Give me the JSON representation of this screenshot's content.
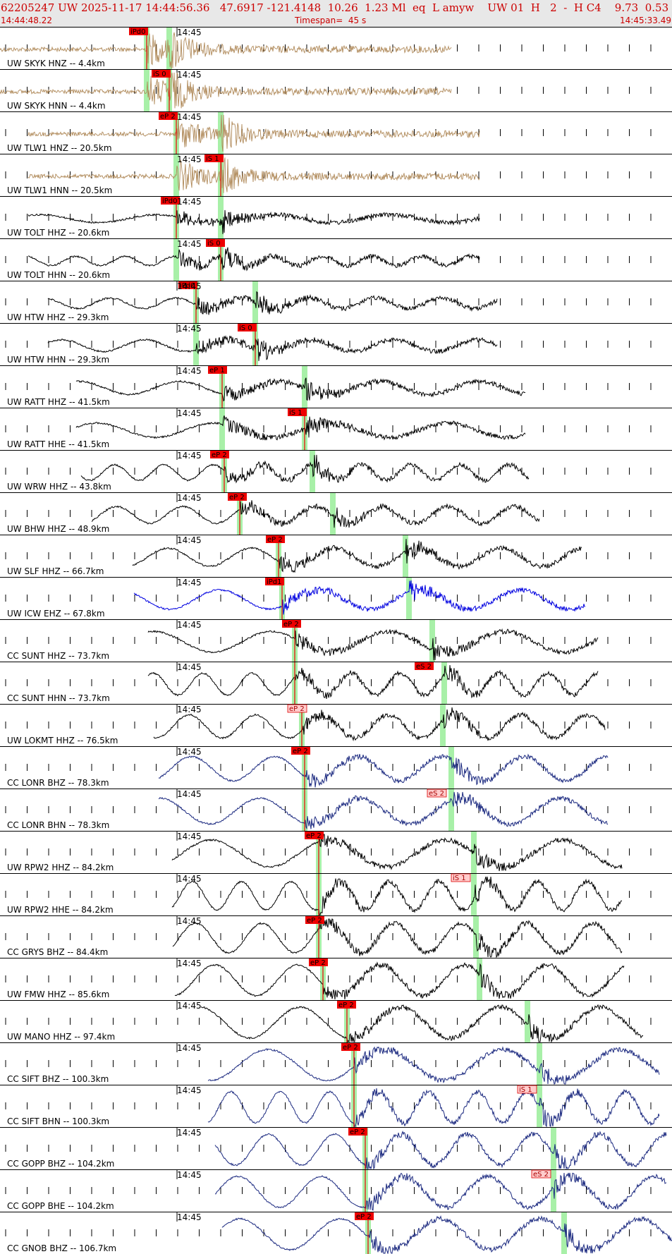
{
  "header": {
    "info": "62205247 UW 2025-11-17 14:44:56.36   47.6917 -121.4148  10.26  1.23 Ml  eq  L amyw    UW 01  H   2  -  H C4    9.73  0.53",
    "start_time": "14:44:48.22",
    "timespan": "Timespan=  45 s",
    "end_time": "14:45:33.49"
  },
  "time_tick_label": "14:45",
  "colors": {
    "header_text": "#cc0000",
    "trace_default": "#000000",
    "trace_brown": "#b08a5a",
    "trace_blue": "#0000e0",
    "trace_navy": "#1c2a80",
    "pick_fill": "#ee0000",
    "pick_fill_emergent": "#ffcccc",
    "window": "#a8f0a8",
    "pick_line": "#ee0000"
  },
  "channels": [
    {
      "label": "UW SKYK HNZ -- 4.4km",
      "color": "trace_brown",
      "pick": "iPd0",
      "pick_emergent": false
    },
    {
      "label": "UW SKYK HNN -- 4.4km",
      "color": "trace_brown",
      "pick": "iS 0",
      "pick_emergent": false
    },
    {
      "label": "UW TLW1 HNZ -- 20.5km",
      "color": "trace_brown",
      "pick": "eP 2",
      "pick_emergent": false
    },
    {
      "label": "UW TLW1 HNN -- 20.5km",
      "color": "trace_brown",
      "pick": "iS 1",
      "pick_emergent": false
    },
    {
      "label": "UW TOLT HHZ -- 20.6km",
      "color": "trace_default",
      "pick": "iPd0",
      "pick_emergent": false
    },
    {
      "label": "UW TOLT HHN -- 20.6km",
      "color": "trace_default",
      "pick": "iS 0",
      "pick_emergent": false
    },
    {
      "label": "UW HTW HHZ -- 29.3km",
      "color": "trace_default",
      "pick": "iPd0",
      "pick_emergent": false
    },
    {
      "label": "UW HTW HHN -- 29.3km",
      "color": "trace_default",
      "pick": "iS 0",
      "pick_emergent": false
    },
    {
      "label": "UW RATT HHZ -- 41.5km",
      "color": "trace_default",
      "pick": "eP 1",
      "pick_emergent": false
    },
    {
      "label": "UW RATT HHE -- 41.5km",
      "color": "trace_default",
      "pick": "iS 1",
      "pick_emergent": false
    },
    {
      "label": "UW WRW HHZ -- 43.8km",
      "color": "trace_default",
      "pick": "eP 2",
      "pick_emergent": false
    },
    {
      "label": "UW BHW HHZ -- 48.9km",
      "color": "trace_default",
      "pick": "eP 2",
      "pick_emergent": false
    },
    {
      "label": "UW SLF HHZ -- 66.7km",
      "color": "trace_default",
      "pick": "eP 2",
      "pick_emergent": false
    },
    {
      "label": "UW ICW EHZ -- 67.8km",
      "color": "trace_blue",
      "pick": "iPd1",
      "pick_emergent": false
    },
    {
      "label": "CC SUNT HHZ -- 73.7km",
      "color": "trace_default",
      "pick": "eP 2",
      "pick_emergent": false
    },
    {
      "label": "CC SUNT HHN -- 73.7km",
      "color": "trace_default",
      "pick": "eS 2",
      "pick_emergent": false
    },
    {
      "label": "UW LOKMT HHZ -- 76.5km",
      "color": "trace_default",
      "pick": "eP 2",
      "pick_emergent": true
    },
    {
      "label": "CC LONR BHZ -- 78.3km",
      "color": "trace_navy",
      "pick": "eP 2",
      "pick_emergent": false
    },
    {
      "label": "CC LONR BHN -- 78.3km",
      "color": "trace_navy",
      "pick": "eS 2",
      "pick_emergent": true
    },
    {
      "label": "UW RPW2 HHZ -- 84.2km",
      "color": "trace_default",
      "pick": "eP 2",
      "pick_emergent": false
    },
    {
      "label": "UW RPW2 HHE -- 84.2km",
      "color": "trace_default",
      "pick": "iS 1",
      "pick_emergent": true
    },
    {
      "label": "CC GRYS BHZ -- 84.4km",
      "color": "trace_default",
      "pick": "eP 2",
      "pick_emergent": false
    },
    {
      "label": "UW FMW HHZ -- 85.6km",
      "color": "trace_default",
      "pick": "eP 2",
      "pick_emergent": false
    },
    {
      "label": "UW MANO HHZ -- 97.4km",
      "color": "trace_default",
      "pick": "eP 2",
      "pick_emergent": false
    },
    {
      "label": "CC SIFT BHZ -- 100.3km",
      "color": "trace_navy",
      "pick": "eP 2",
      "pick_emergent": false
    },
    {
      "label": "CC SIFT BHN -- 100.3km",
      "color": "trace_navy",
      "pick": "iS 1",
      "pick_emergent": true
    },
    {
      "label": "CC GOPP BHZ -- 104.2km",
      "color": "trace_navy",
      "pick": "eP 2",
      "pick_emergent": false
    },
    {
      "label": "CC GOPP BHE -- 104.2km",
      "color": "trace_navy",
      "pick": "eS 2",
      "pick_emergent": true
    },
    {
      "label": "CC GNOB BHZ -- 106.7km",
      "color": "trace_navy",
      "pick": "eP 2",
      "pick_emergent": false
    }
  ]
}
